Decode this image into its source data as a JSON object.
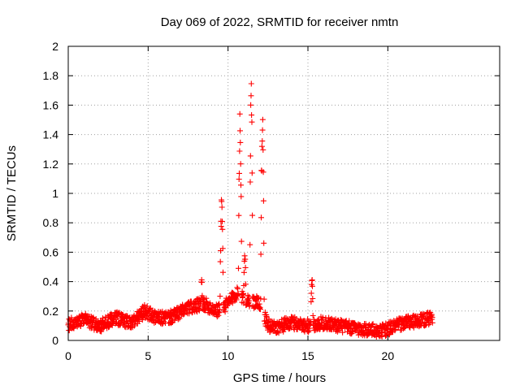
{
  "chart_data": {
    "type": "scatter",
    "title": "Day 069 of 2022, SRMTID for receiver nmtn",
    "xlabel": "GPS time / hours",
    "ylabel": "SRMTID / TECUs",
    "xlim": [
      0,
      27
    ],
    "ylim": [
      0,
      2
    ],
    "grid": true,
    "marker": "+",
    "marker_color": "#ff0000",
    "x_ticks": [
      0,
      5,
      10,
      15,
      20
    ],
    "x_tick_labels": [
      "0",
      "5",
      "10",
      "15",
      "20"
    ],
    "y_ticks": [
      0,
      0.2,
      0.4,
      0.6,
      0.8,
      1,
      1.2,
      1.4,
      1.6,
      1.8,
      2
    ],
    "y_tick_labels": [
      "0",
      "0.2",
      "0.4",
      "0.6",
      "0.8",
      "1",
      "1.2",
      "1.4",
      "1.6",
      "1.8",
      "2"
    ],
    "series": [
      {
        "name": "SRMTID",
        "description": "dense 30-second samples; values estimated from the plotted envelope",
        "x_range": [
          0,
          22.8
        ],
        "sample_interval_hours": 0.0167,
        "baseline_profile": {
          "x": [
            0,
            1,
            2,
            3,
            4,
            4.8,
            5.5,
            6.5,
            7.5,
            8.5,
            9.3,
            10,
            10.5,
            11.2,
            12,
            12.5,
            13,
            14,
            15,
            16,
            17,
            18,
            19,
            19.5,
            20,
            21,
            22,
            22.8
          ],
          "y": [
            0.11,
            0.14,
            0.1,
            0.15,
            0.12,
            0.2,
            0.15,
            0.16,
            0.22,
            0.25,
            0.2,
            0.25,
            0.32,
            0.28,
            0.25,
            0.1,
            0.09,
            0.12,
            0.1,
            0.12,
            0.1,
            0.08,
            0.07,
            0.06,
            0.08,
            0.12,
            0.13,
            0.16
          ]
        },
        "peaks": [
          {
            "center": 8.35,
            "height": 0.47,
            "width": 0.06
          },
          {
            "center": 9.6,
            "height": 1.0,
            "width": 0.12
          },
          {
            "center": 10.75,
            "height": 1.6,
            "width": 0.12
          },
          {
            "center": 11.05,
            "height": 0.6,
            "width": 0.1
          },
          {
            "center": 11.45,
            "height": 1.82,
            "width": 0.1
          },
          {
            "center": 12.15,
            "height": 1.57,
            "width": 0.12
          },
          {
            "center": 15.25,
            "height": 0.48,
            "width": 0.08
          }
        ]
      }
    ]
  }
}
